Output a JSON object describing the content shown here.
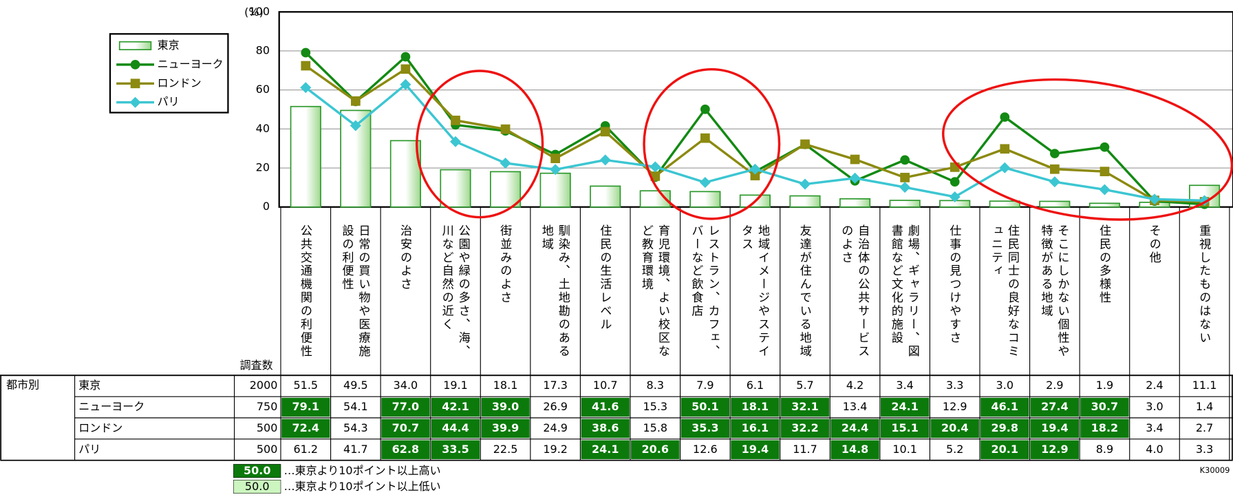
{
  "chart_data": {
    "type": "bar-line",
    "y_label": "(%)",
    "ylim": [
      0,
      100
    ],
    "yticks": [
      0,
      20,
      40,
      60,
      80,
      100
    ],
    "grid": true,
    "categories": [
      "公共交通機関の利便性",
      "日常の買い物や医療施設の利便性",
      "治安のよさ",
      "公園や緑の多さ、海、川など自然の近く",
      "街並みのよさ",
      "馴染み、土地勘のある地域",
      "住民の生活レベル",
      "育児環境、よい校区など教育環境",
      "レストラン、カフェ、バーなど飲食店",
      "地域イメージやステイタス",
      "友達が住んでいる地域",
      "自治体の公共サービスのよさ",
      "劇場、ギャラリー、図書館など文化的施設",
      "仕事の見つけやすさ",
      "住民同士の良好なコミュニティ",
      "そこにしかない個性や特徴がある地域",
      "住民の多様性",
      "その他",
      "重視したものはない"
    ],
    "series": [
      {
        "name": "東京",
        "type": "bar",
        "color": "#2e9a2e",
        "n": 2000,
        "values": [
          51.5,
          49.5,
          34.0,
          19.1,
          18.1,
          17.3,
          10.7,
          8.3,
          7.9,
          6.1,
          5.7,
          4.2,
          3.4,
          3.3,
          3.0,
          2.9,
          1.9,
          2.4,
          11.1
        ],
        "value_labels": [
          "51.5",
          "49.5",
          "34.0",
          "19.1",
          "18.1",
          "17.3",
          "10.7",
          "8.3",
          "7.9",
          "6.1",
          "5.7",
          "4.2",
          "3.4",
          "3.3",
          "3.0",
          "2.9",
          "1.9",
          "2.4",
          "11.1"
        ],
        "highlight": [
          0,
          0,
          0,
          0,
          0,
          0,
          0,
          0,
          0,
          0,
          0,
          0,
          0,
          0,
          0,
          0,
          0,
          0,
          0
        ]
      },
      {
        "name": "ニューヨーク",
        "type": "line",
        "marker": "circle",
        "color": "#138a13",
        "n": 750,
        "values": [
          79.1,
          54.1,
          77.0,
          42.1,
          39.0,
          26.9,
          41.6,
          15.3,
          50.1,
          18.1,
          32.1,
          13.4,
          24.1,
          12.9,
          46.1,
          27.4,
          30.7,
          3.0,
          1.4
        ],
        "value_labels": [
          "79.1",
          "54.1",
          "77.0",
          "42.1",
          "39.0",
          "26.9",
          "41.6",
          "15.3",
          "50.1",
          "18.1",
          "32.1",
          "13.4",
          "24.1",
          "12.9",
          "46.1",
          "27.4",
          "30.7",
          "3.0",
          "1.4"
        ],
        "highlight": [
          1,
          0,
          1,
          1,
          1,
          0,
          1,
          0,
          1,
          1,
          1,
          0,
          1,
          0,
          1,
          1,
          1,
          0,
          0
        ]
      },
      {
        "name": "ロンドン",
        "type": "line",
        "marker": "square",
        "color": "#8c8a10",
        "n": 500,
        "values": [
          72.4,
          54.3,
          70.7,
          44.4,
          39.9,
          24.9,
          38.6,
          15.8,
          35.3,
          16.1,
          32.2,
          24.4,
          15.1,
          20.4,
          29.8,
          19.4,
          18.2,
          3.4,
          2.7
        ],
        "value_labels": [
          "72.4",
          "54.3",
          "70.7",
          "44.4",
          "39.9",
          "24.9",
          "38.6",
          "15.8",
          "35.3",
          "16.1",
          "32.2",
          "24.4",
          "15.1",
          "20.4",
          "29.8",
          "19.4",
          "18.2",
          "3.4",
          "2.7"
        ],
        "highlight": [
          1,
          0,
          1,
          1,
          1,
          0,
          1,
          0,
          1,
          1,
          1,
          1,
          1,
          1,
          1,
          1,
          1,
          0,
          0
        ]
      },
      {
        "name": "パリ",
        "type": "line",
        "marker": "diamond",
        "color": "#3cc6d2",
        "n": 500,
        "values": [
          61.2,
          41.7,
          62.8,
          33.5,
          22.5,
          19.2,
          24.1,
          20.6,
          12.6,
          19.4,
          11.7,
          14.8,
          10.1,
          5.2,
          20.1,
          12.9,
          8.9,
          4.0,
          3.3
        ],
        "value_labels": [
          "61.2",
          "41.7",
          "62.8",
          "33.5",
          "22.5",
          "19.2",
          "24.1",
          "20.6",
          "12.6",
          "19.4",
          "11.7",
          "14.8",
          "10.1",
          "5.2",
          "20.1",
          "12.9",
          "8.9",
          "4.0",
          "3.3"
        ],
        "highlight": [
          0,
          0,
          1,
          1,
          0,
          0,
          1,
          1,
          0,
          1,
          0,
          1,
          0,
          0,
          1,
          1,
          0,
          0,
          0
        ]
      }
    ],
    "table_group": "都市別",
    "table_n_header": "調査数",
    "notes": [
      {
        "sample": "50.0",
        "text": "…東京より10ポイント以上高い"
      },
      {
        "sample": "50.0",
        "text": "…東京より10ポイント以上低い"
      }
    ],
    "code": "K30009"
  }
}
